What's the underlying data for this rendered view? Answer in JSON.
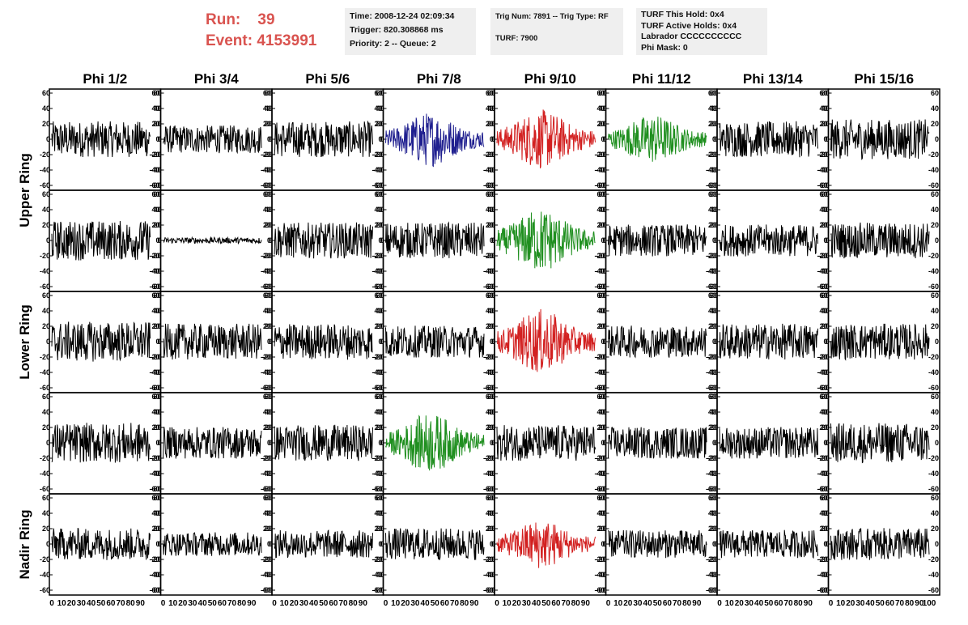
{
  "header": {
    "run_label": "Run:",
    "run_value": "39",
    "event_label": "Event:",
    "event_value": "4153991",
    "box1": [
      "Time: 2008-12-24 02:09:34",
      "Trigger: 820.308868 ms",
      "Priority: 2 -- Queue: 2"
    ],
    "box2": [
      "Trig Num: 7891 -- Trig Type: RF",
      "",
      "TURF: 7900"
    ],
    "box3": [
      "TURF This Hold: 0x4",
      "TURF Active Holds: 0x4",
      "Labrador CCCCCCCCCC",
      "Phi Mask: 0"
    ]
  },
  "colors": {
    "black": "#000000",
    "blue": "#1f1f8f",
    "red": "#d22020",
    "green": "#1f8f1f",
    "run_text": "#d9534f"
  },
  "chart_data": {
    "type": "line",
    "title": "",
    "columns": [
      "Phi 1/2",
      "Phi 3/4",
      "Phi 5/6",
      "Phi 7/8",
      "Phi 9/10",
      "Phi 11/12",
      "Phi 13/14",
      "Phi 15/16"
    ],
    "ring_labels": [
      "Upper Ring",
      "Lower Ring",
      "Nadir Ring"
    ],
    "xlim": [
      0,
      100
    ],
    "ylim": [
      -60,
      60
    ],
    "x_ticks": [
      "0",
      "10",
      "20",
      "30",
      "40",
      "50",
      "60",
      "70",
      "80",
      "90",
      "100"
    ],
    "y_ticks": [
      "60",
      "40",
      "20",
      "0",
      "-20",
      "-40",
      "-60"
    ],
    "grid": false,
    "panels": [
      [
        {
          "color": "black",
          "amp": 18
        },
        {
          "color": "black",
          "amp": 14
        },
        {
          "color": "black",
          "amp": 18
        },
        {
          "color": "blue",
          "amp": 22
        },
        {
          "color": "red",
          "amp": 24
        },
        {
          "color": "green",
          "amp": 20
        },
        {
          "color": "black",
          "amp": 18
        },
        {
          "color": "black",
          "amp": 20
        }
      ],
      [
        {
          "color": "black",
          "amp": 20
        },
        {
          "color": "black",
          "amp": 3
        },
        {
          "color": "black",
          "amp": 18
        },
        {
          "color": "black",
          "amp": 18
        },
        {
          "color": "green",
          "amp": 26
        },
        {
          "color": "black",
          "amp": 16
        },
        {
          "color": "black",
          "amp": 16
        },
        {
          "color": "black",
          "amp": 18
        }
      ],
      [
        {
          "color": "black",
          "amp": 20
        },
        {
          "color": "black",
          "amp": 18
        },
        {
          "color": "black",
          "amp": 18
        },
        {
          "color": "black",
          "amp": 16
        },
        {
          "color": "red",
          "amp": 26
        },
        {
          "color": "black",
          "amp": 16
        },
        {
          "color": "black",
          "amp": 18
        },
        {
          "color": "black",
          "amp": 18
        }
      ],
      [
        {
          "color": "black",
          "amp": 20
        },
        {
          "color": "black",
          "amp": 16
        },
        {
          "color": "black",
          "amp": 18
        },
        {
          "color": "green",
          "amp": 24
        },
        {
          "color": "black",
          "amp": 18
        },
        {
          "color": "black",
          "amp": 16
        },
        {
          "color": "black",
          "amp": 16
        },
        {
          "color": "black",
          "amp": 20
        }
      ],
      [
        {
          "color": "black",
          "amp": 16
        },
        {
          "color": "black",
          "amp": 12
        },
        {
          "color": "black",
          "amp": 14
        },
        {
          "color": "black",
          "amp": 16
        },
        {
          "color": "red",
          "amp": 20
        },
        {
          "color": "black",
          "amp": 14
        },
        {
          "color": "black",
          "amp": 14
        },
        {
          "color": "black",
          "amp": 16
        }
      ]
    ]
  }
}
